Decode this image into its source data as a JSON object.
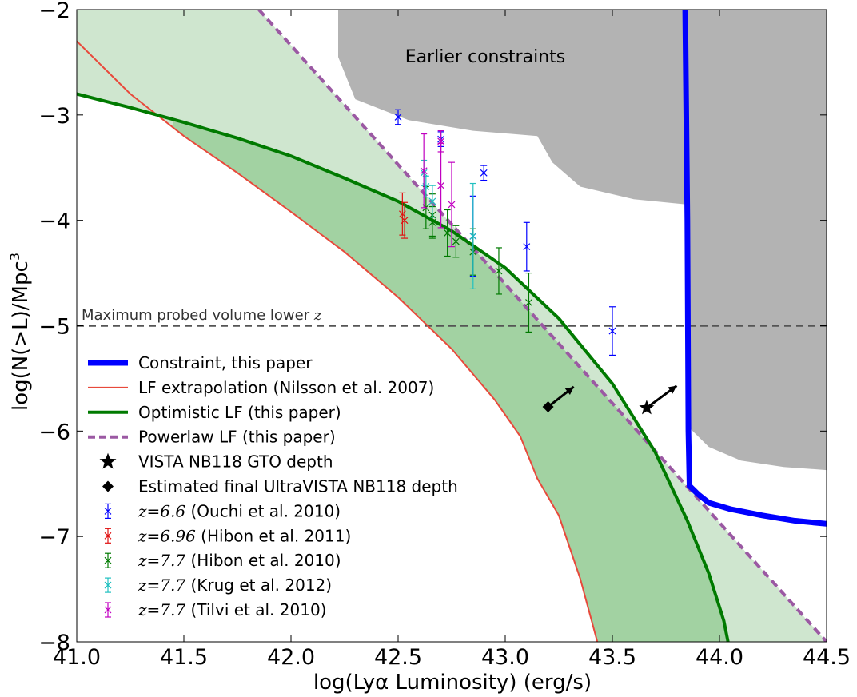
{
  "chart_data": {
    "type": "line",
    "xlabel": "log(Lyα Luminosity) (erg/s)",
    "ylabel": "log(N(>L)/Mpc",
    "ylabel_sup": "3",
    "xlim": [
      41.0,
      44.5
    ],
    "ylim": [
      -8,
      -2
    ],
    "xticks": [
      41.0,
      41.5,
      42.0,
      42.5,
      43.0,
      43.5,
      44.0,
      44.5
    ],
    "xtick_labels": [
      "41.0",
      "41.5",
      "42.0",
      "42.5",
      "43.0",
      "43.5",
      "44.0",
      "44.5"
    ],
    "yticks": [
      -2,
      -3,
      -4,
      -5,
      -6,
      -7,
      -8
    ],
    "ytick_labels": [
      "−2",
      "−3",
      "−4",
      "−5",
      "−6",
      "−7",
      "−8"
    ],
    "annotations": {
      "earlier": "Earlier constraints",
      "max_volume": "Maximum probed volume lower ",
      "max_volume_z": "z",
      "max_volume_y": -5
    },
    "colors": {
      "constraint": "#0000ff",
      "nilsson": "#e8493b",
      "optimistic": "#007a00",
      "powerlaw": "#9b59a3",
      "fill_light": "#cfe6cf",
      "fill_dark": "#a2d2a2",
      "grey": "#b3b3b3"
    },
    "earlier_region": {
      "x": [
        42.22,
        42.22,
        42.3,
        42.55,
        42.85,
        43.15,
        43.22,
        43.35,
        43.6,
        43.85,
        43.85,
        44.5,
        44.5
      ],
      "y": [
        -2.0,
        -2.45,
        -2.85,
        -3.05,
        -3.15,
        -3.2,
        -3.45,
        -3.68,
        -3.8,
        -3.85,
        -2.0,
        -2.0,
        -2.0
      ]
    },
    "earlier_lower_region": {
      "x": [
        43.85,
        43.85,
        43.95,
        44.1,
        44.3,
        44.5,
        44.5
      ],
      "y": [
        -2.0,
        -5.95,
        -6.15,
        -6.28,
        -6.34,
        -6.37,
        -2.0
      ]
    },
    "series": [
      {
        "name": "Constraint, this paper",
        "key": "constraint",
        "x": [
          43.84,
          43.85,
          43.855,
          43.86,
          43.9,
          43.95,
          44.05,
          44.2,
          44.35,
          44.5
        ],
        "y": [
          -2.0,
          -4.0,
          -6.0,
          -6.52,
          -6.6,
          -6.68,
          -6.74,
          -6.8,
          -6.85,
          -6.88
        ]
      },
      {
        "name": "LF extrapolation (Nilsson et al. 2007)",
        "key": "nilsson",
        "x": [
          41.0,
          41.25,
          41.5,
          41.75,
          42.0,
          42.25,
          42.5,
          42.75,
          42.95,
          43.07,
          43.15,
          43.25,
          43.35,
          43.43
        ],
        "y": [
          -2.3,
          -2.8,
          -3.2,
          -3.55,
          -3.92,
          -4.3,
          -4.73,
          -5.22,
          -5.7,
          -6.05,
          -6.45,
          -6.8,
          -7.4,
          -8.0
        ]
      },
      {
        "name": "Optimistic LF (this paper)",
        "key": "optimistic",
        "x": [
          41.0,
          41.25,
          41.5,
          41.75,
          42.0,
          42.25,
          42.5,
          42.75,
          43.0,
          43.25,
          43.5,
          43.7,
          43.85,
          43.95,
          44.02,
          44.04
        ],
        "y": [
          -2.8,
          -2.93,
          -3.07,
          -3.22,
          -3.39,
          -3.6,
          -3.82,
          -4.1,
          -4.45,
          -4.93,
          -5.55,
          -6.2,
          -6.85,
          -7.35,
          -7.8,
          -8.0
        ]
      },
      {
        "name": "Powerlaw LF (this paper)",
        "key": "powerlaw",
        "x": [
          41.85,
          44.5
        ],
        "y": [
          -2.0,
          -8.0
        ]
      }
    ],
    "markers": [
      {
        "name": "VISTA NB118 GTO depth",
        "shape": "star",
        "x": 43.66,
        "y": -5.78
      },
      {
        "name": "Estimated final UltraVISTA NB118 depth",
        "shape": "diamond",
        "x": 43.2,
        "y": -5.77
      }
    ],
    "arrows": [
      {
        "x0": 43.2,
        "y0": -5.77,
        "x1": 43.32,
        "y1": -5.58
      },
      {
        "x0": 43.66,
        "y0": -5.78,
        "x1": 43.8,
        "y1": -5.57
      }
    ],
    "errorbar_series": [
      {
        "z": "z=6.6",
        "label": " (Ouchi et al. 2010)",
        "color": "#0000ff",
        "points": [
          {
            "x": 42.5,
            "y": -3.02,
            "err": 0.07
          },
          {
            "x": 42.7,
            "y": -3.23,
            "err": 0.07
          },
          {
            "x": 42.9,
            "y": -3.55,
            "err": 0.07
          },
          {
            "x": 42.85,
            "y": -4.15,
            "err": 0.38
          },
          {
            "x": 43.1,
            "y": -4.25,
            "err": 0.23
          },
          {
            "x": 43.5,
            "y": -5.05,
            "err": 0.23
          }
        ]
      },
      {
        "z": "z=6.96",
        "label": " (Hibon et al. 2011)",
        "color": "#e01010",
        "points": [
          {
            "x": 42.52,
            "y": -3.94,
            "err": 0.2
          },
          {
            "x": 42.53,
            "y": -4.0,
            "err": 0.17
          }
        ]
      },
      {
        "z": "z=7.7",
        "label": " (Hibon et al. 2010)",
        "color": "#007a00",
        "points": [
          {
            "x": 42.63,
            "y": -3.88,
            "err": 0.2
          },
          {
            "x": 42.66,
            "y": -3.95,
            "err": 0.2
          },
          {
            "x": 42.66,
            "y": -4.02,
            "err": 0.15
          },
          {
            "x": 42.73,
            "y": -4.12,
            "err": 0.22
          },
          {
            "x": 42.77,
            "y": -4.2,
            "err": 0.15
          },
          {
            "x": 42.85,
            "y": -4.3,
            "err": 0.22
          },
          {
            "x": 42.97,
            "y": -4.48,
            "err": 0.22
          },
          {
            "x": 43.11,
            "y": -4.78,
            "err": 0.28
          }
        ]
      },
      {
        "z": "z=7.7",
        "label": " (Krug et al. 2012)",
        "color": "#20c0c0",
        "points": [
          {
            "x": 42.62,
            "y": -3.55,
            "err": 0.12
          },
          {
            "x": 42.63,
            "y": -3.68,
            "err": 0.1
          },
          {
            "x": 42.66,
            "y": -3.82,
            "err": 0.15
          },
          {
            "x": 42.85,
            "y": -4.15,
            "err": 0.5
          }
        ]
      },
      {
        "z": "z=7.7",
        "label": " (Tilvi et al. 2010)",
        "color": "#c000c0",
        "points": [
          {
            "x": 42.62,
            "y": -3.53,
            "err": 0.35
          },
          {
            "x": 42.7,
            "y": -3.25,
            "err": 0.1
          },
          {
            "x": 42.7,
            "y": -3.67,
            "err": 0.4
          },
          {
            "x": 42.75,
            "y": -3.85,
            "err": 0.4
          }
        ]
      }
    ],
    "legend": {
      "placement": "lower-left",
      "entries": [
        {
          "label": "Constraint, this paper",
          "kind": "line",
          "key": "constraint"
        },
        {
          "label": "LF extrapolation (Nilsson et al. 2007)",
          "kind": "line",
          "key": "nilsson"
        },
        {
          "label": "Optimistic LF (this paper)",
          "kind": "line",
          "key": "optimistic"
        },
        {
          "label": "Powerlaw LF (this paper)",
          "kind": "dashed",
          "key": "powerlaw"
        },
        {
          "label": "VISTA NB118 GTO depth",
          "kind": "star"
        },
        {
          "label": "Estimated final UltraVISTA NB118 depth",
          "kind": "diamond"
        },
        {
          "z": "z=6.6",
          "label": " (Ouchi et al. 2010)",
          "kind": "errorbar",
          "color": "#0000ff"
        },
        {
          "z": "z=6.96",
          "label": " (Hibon et al. 2011)",
          "kind": "errorbar",
          "color": "#e01010"
        },
        {
          "z": "z=7.7",
          "label": " (Hibon et al. 2010)",
          "kind": "errorbar",
          "color": "#007a00"
        },
        {
          "z": "z=7.7",
          "label": " (Krug et al. 2012)",
          "kind": "errorbar",
          "color": "#20c0c0"
        },
        {
          "z": "z=7.7",
          "label": " (Tilvi et al. 2010)",
          "kind": "errorbar",
          "color": "#c000c0"
        }
      ]
    }
  }
}
